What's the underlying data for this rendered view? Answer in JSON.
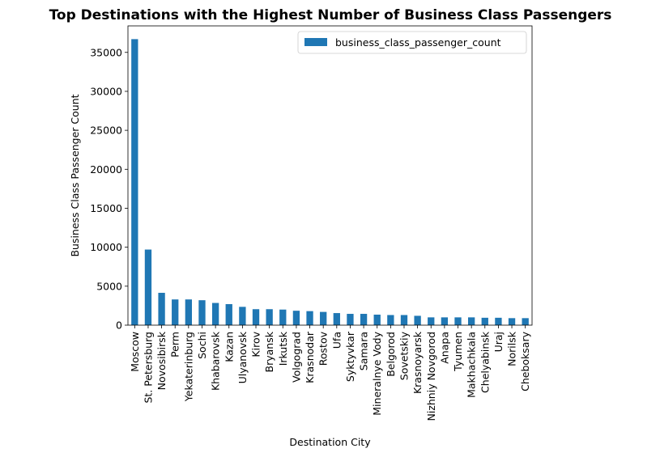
{
  "chart_data": {
    "type": "bar",
    "title": "Top Destinations with the Highest Number of Business Class Passengers",
    "xlabel": "Destination City",
    "ylabel": "Business Class Passenger Count",
    "ylim": [
      0,
      38400
    ],
    "yticks": [
      0,
      5000,
      10000,
      15000,
      20000,
      25000,
      30000,
      35000
    ],
    "grid": false,
    "legend_position": "top-right",
    "bar_color": "#1f77b4",
    "categories": [
      "Moscow",
      "St. Petersburg",
      "Novosibirsk",
      "Perm",
      "Yekaterinburg",
      "Sochi",
      "Khabarovsk",
      "Kazan",
      "Ulyanovsk",
      "Kirov",
      "Bryansk",
      "Irkutsk",
      "Volgograd",
      "Krasnodar",
      "Rostov",
      "Ufa",
      "Syktyvkar",
      "Samara",
      "Mineralnye Vody",
      "Belgorod",
      "Sovetskiy",
      "Krasnoyarsk",
      "Nizhniy Novgorod",
      "Anapa",
      "Tyumen",
      "Makhachkala",
      "Chelyabinsk",
      "Uraj",
      "Norilsk",
      "Cheboksary"
    ],
    "series": [
      {
        "name": "business_class_passenger_count",
        "values": [
          36700,
          9700,
          4150,
          3300,
          3300,
          3200,
          2850,
          2700,
          2350,
          2050,
          2050,
          2000,
          1850,
          1800,
          1700,
          1550,
          1450,
          1450,
          1350,
          1300,
          1300,
          1200,
          1000,
          1000,
          1000,
          1000,
          950,
          950,
          900,
          900
        ]
      }
    ]
  }
}
